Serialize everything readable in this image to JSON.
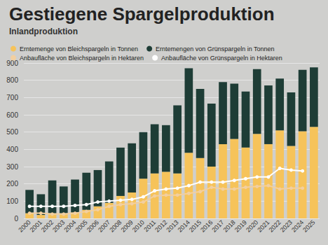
{
  "chart_data": {
    "type": "bar",
    "title": "Gestiegene Spargelproduktion",
    "subtitle": "Inlandproduktion",
    "categories": [
      "2000",
      "2001",
      "2002",
      "2003",
      "2004",
      "2005",
      "2006",
      "2007",
      "2008",
      "2009",
      "2010",
      "2011",
      "2012",
      "2013",
      "2014",
      "2015",
      "2016",
      "2017",
      "2018",
      "2019",
      "2020",
      "2021",
      "2022",
      "2023",
      "2024",
      "2025"
    ],
    "series": [
      {
        "name": "Erntemenge von Bleichspargeln in Tonnen",
        "type": "bar",
        "color": "#f6c35a",
        "values": [
          30,
          20,
          30,
          30,
          35,
          50,
          70,
          90,
          130,
          150,
          230,
          260,
          270,
          260,
          380,
          350,
          300,
          430,
          460,
          410,
          490,
          430,
          510,
          420,
          505,
          530
        ]
      },
      {
        "name": "Erntemengen von Grünspargeln in Tonnen",
        "type": "bar",
        "color": "#1e3d36",
        "values": [
          135,
          120,
          190,
          155,
          190,
          215,
          210,
          240,
          280,
          285,
          270,
          285,
          270,
          395,
          490,
          400,
          365,
          360,
          320,
          325,
          375,
          340,
          300,
          310,
          355,
          345
        ]
      },
      {
        "name": "Anbaufläche von Bleichspargeln in Hektaren",
        "type": "line",
        "color": "#f2cfa0",
        "marker": "circle",
        "values": [
          30,
          30,
          25,
          25,
          30,
          40,
          50,
          70,
          80,
          85,
          95,
          130,
          135,
          135,
          145,
          155,
          180,
          170,
          170,
          180,
          185,
          190,
          170,
          175,
          175,
          null
        ]
      },
      {
        "name": "Anbaufläche von Grünspargeln in Hektaren",
        "type": "line",
        "color": "#ffffff",
        "marker": "circle",
        "values": [
          70,
          70,
          70,
          70,
          75,
          80,
          95,
          100,
          105,
          110,
          125,
          160,
          170,
          175,
          190,
          210,
          210,
          210,
          220,
          230,
          240,
          240,
          290,
          280,
          275,
          null
        ]
      }
    ],
    "stacked": true,
    "ylim": [
      0,
      900
    ],
    "yticks": [
      0,
      100,
      200,
      300,
      400,
      500,
      600,
      700,
      800,
      900
    ],
    "grid": true,
    "legend": "top"
  }
}
